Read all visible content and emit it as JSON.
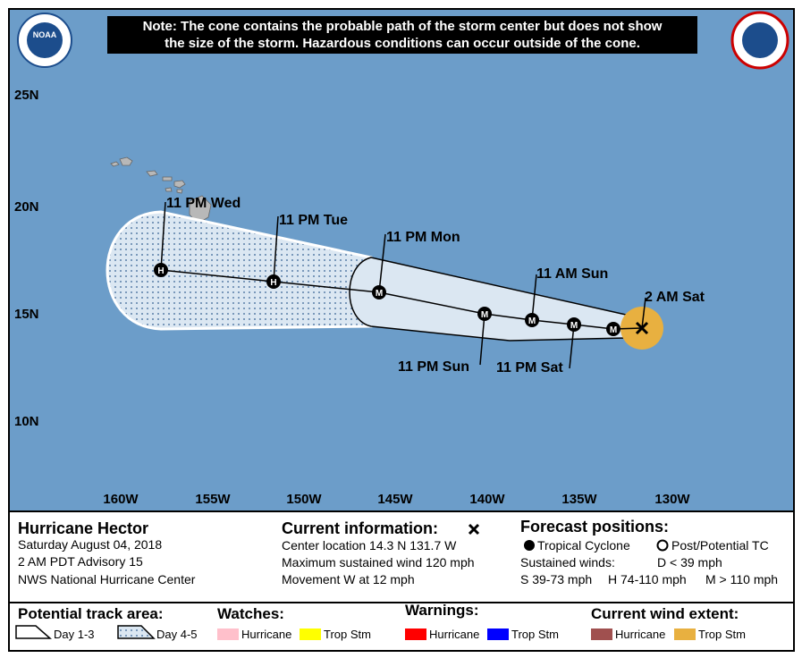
{
  "note": [
    "Note: The cone contains the probable path of the storm center but does not show",
    "the size of the storm. Hazardous conditions can occur outside of the cone."
  ],
  "logos": {
    "noaa": "NOAA"
  },
  "map": {
    "lat_labels": [
      "25N",
      "20N",
      "15N",
      "10N"
    ],
    "lon_labels": [
      "160W",
      "155W",
      "150W",
      "145W",
      "140W",
      "135W",
      "130W"
    ],
    "forecast_points": [
      {
        "label": "2 AM Sat"
      },
      {
        "marker": "M"
      },
      {
        "marker": "M",
        "label": "11 PM Sat"
      },
      {
        "marker": "M",
        "label": "11 AM Sun"
      },
      {
        "marker": "M",
        "label": "11 PM Sun"
      },
      {
        "marker": "M",
        "label": "11 PM Mon"
      },
      {
        "marker": "H",
        "label": "11 PM Tue"
      },
      {
        "marker": "H",
        "label": "11 PM Wed"
      }
    ]
  },
  "info": {
    "storm": "Hurricane Hector",
    "details": [
      "Saturday August 04, 2018",
      "2 AM PDT Advisory 15",
      "NWS National Hurricane Center"
    ],
    "current_title": "Current information:",
    "current_lines": [
      "Center location 14.3 N 131.7 W",
      "Maximum sustained wind 120 mph",
      "Movement W at 12 mph"
    ],
    "forecast_title": "Forecast positions:",
    "tropical_cyclone": "Tropical Cyclone",
    "post_tc": "Post/Potential TC",
    "sustained": "Sustained winds:",
    "d": "D < 39 mph",
    "shm": [
      "S 39-73 mph",
      "H 74-110 mph",
      "M > 110 mph"
    ]
  },
  "legend": {
    "track_title": "Potential track area:",
    "day13": "Day 1-3",
    "day45": "Day 4-5",
    "watches_title": "Watches:",
    "watches": [
      "Hurricane",
      "Trop Stm"
    ],
    "warnings_title": "Warnings:",
    "warnings": [
      "Hurricane",
      "Trop Stm"
    ],
    "wind_title": "Current wind extent:",
    "wind": [
      "Hurricane",
      "Trop Stm"
    ]
  }
}
